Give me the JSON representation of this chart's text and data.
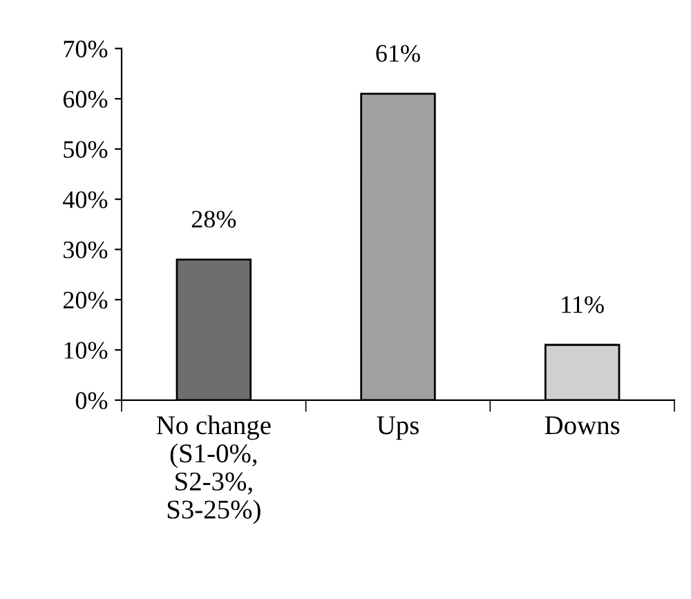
{
  "chart_data": {
    "type": "bar",
    "categories": [
      "No change\n(S1-0%,\nS2-3%,\nS3-25%)",
      "Ups",
      "Downs"
    ],
    "values": [
      28,
      61,
      11
    ],
    "colors": [
      "#6e6e6e",
      "#a0a0a0",
      "#d0d0d0"
    ],
    "value_labels": [
      "28%",
      "61%",
      "11%"
    ],
    "ylim": [
      0,
      70
    ],
    "yticks": [
      {
        "value": 0,
        "label": "0%"
      },
      {
        "value": 10,
        "label": "10%"
      },
      {
        "value": 20,
        "label": "20%"
      },
      {
        "value": 30,
        "label": "30%"
      },
      {
        "value": 40,
        "label": "40%"
      },
      {
        "value": 50,
        "label": "50%"
      },
      {
        "value": 60,
        "label": "60%"
      },
      {
        "value": 70,
        "label": "70%"
      }
    ],
    "grid": false,
    "legend": false
  }
}
